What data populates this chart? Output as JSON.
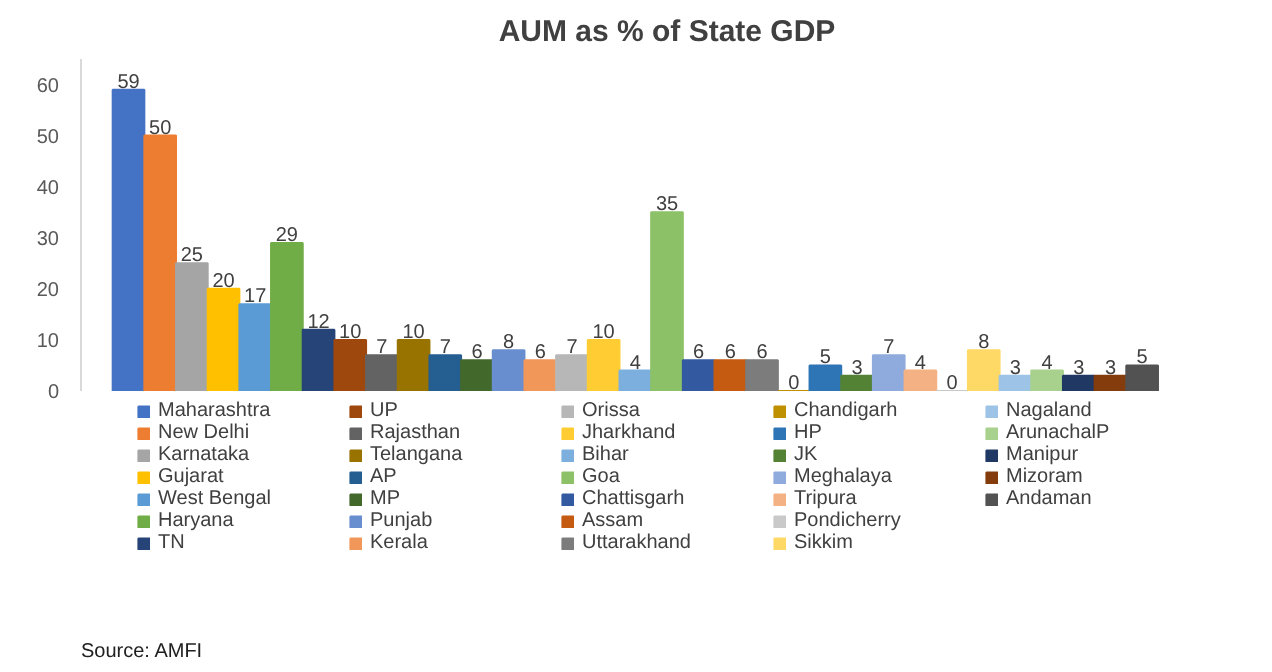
{
  "chart_data": {
    "type": "bar",
    "title": "AUM as % of State GDP",
    "categories": [
      null
    ],
    "series": [
      {
        "name": "Maharashtra",
        "color": "#4472c4",
        "values": [
          59
        ]
      },
      {
        "name": "New Delhi",
        "color": "#ed7d31",
        "values": [
          50
        ]
      },
      {
        "name": "Karnataka",
        "color": "#a5a5a5",
        "values": [
          25
        ]
      },
      {
        "name": "Gujarat",
        "color": "#ffc000",
        "values": [
          20
        ]
      },
      {
        "name": "West Bengal",
        "color": "#5b9bd5",
        "values": [
          17
        ]
      },
      {
        "name": "Haryana",
        "color": "#70ad47",
        "values": [
          29
        ]
      },
      {
        "name": "TN",
        "color": "#264478",
        "values": [
          12
        ]
      },
      {
        "name": "UP",
        "color": "#9e480e",
        "values": [
          10
        ]
      },
      {
        "name": "Rajasthan",
        "color": "#636363",
        "values": [
          7
        ]
      },
      {
        "name": "Telangana",
        "color": "#997300",
        "values": [
          10
        ]
      },
      {
        "name": "AP",
        "color": "#255e91",
        "values": [
          7
        ]
      },
      {
        "name": "MP",
        "color": "#43682b",
        "values": [
          6
        ]
      },
      {
        "name": "Punjab",
        "color": "#698ed0",
        "values": [
          8
        ]
      },
      {
        "name": "Kerala",
        "color": "#f1975a",
        "values": [
          6
        ]
      },
      {
        "name": "Orissa",
        "color": "#b7b7b7",
        "values": [
          7
        ]
      },
      {
        "name": "Jharkhand",
        "color": "#ffcd33",
        "values": [
          10
        ]
      },
      {
        "name": "Bihar",
        "color": "#7cafdd",
        "values": [
          4
        ]
      },
      {
        "name": "Goa",
        "color": "#8cc168",
        "values": [
          35
        ]
      },
      {
        "name": "Chattisgarh",
        "color": "#335aa1",
        "values": [
          6
        ]
      },
      {
        "name": "Assam",
        "color": "#c55a11",
        "values": [
          6
        ]
      },
      {
        "name": "Uttarakhand",
        "color": "#7c7c7c",
        "values": [
          6
        ]
      },
      {
        "name": "Chandigarh",
        "color": "#bf9000",
        "values": [
          0
        ]
      },
      {
        "name": "HP",
        "color": "#2e75b6",
        "values": [
          5
        ]
      },
      {
        "name": "JK",
        "color": "#548235",
        "values": [
          3
        ]
      },
      {
        "name": "Meghalaya",
        "color": "#8faadc",
        "values": [
          7
        ]
      },
      {
        "name": "Tripura",
        "color": "#f4b183",
        "values": [
          4
        ]
      },
      {
        "name": "Pondicherry",
        "color": "#c9c9c9",
        "values": [
          0
        ]
      },
      {
        "name": "Sikkim",
        "color": "#ffd966",
        "values": [
          8
        ]
      },
      {
        "name": "Nagaland",
        "color": "#9dc3e6",
        "values": [
          3
        ]
      },
      {
        "name": "ArunachalP",
        "color": "#a9d18e",
        "values": [
          4
        ]
      },
      {
        "name": "Manipur",
        "color": "#203864",
        "values": [
          3
        ]
      },
      {
        "name": "Mizoram",
        "color": "#843c0c",
        "values": [
          3
        ]
      },
      {
        "name": "Andaman",
        "color": "#525252",
        "values": [
          5
        ]
      }
    ],
    "ylim": [
      0,
      65
    ],
    "yticks": [
      0,
      10,
      20,
      30,
      40,
      50,
      60
    ],
    "grid": false,
    "legend": "bottom",
    "data_labels": true,
    "tick_labels": "y",
    "annotations": [
      "Source: AMFI"
    ]
  }
}
